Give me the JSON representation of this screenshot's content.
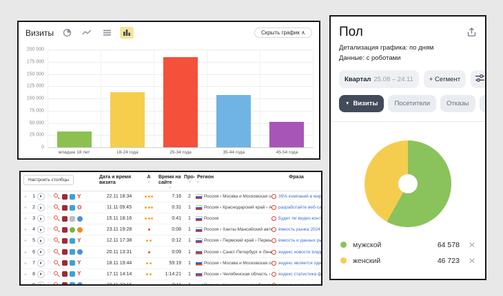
{
  "chart_data": [
    {
      "type": "bar",
      "title": "Визиты",
      "categories": [
        "младше 18 лет",
        "18-24 года",
        "25-34 года",
        "35-44 года",
        "45-54 года"
      ],
      "values": [
        32000,
        113000,
        185000,
        107000,
        52000
      ],
      "colors": [
        "#8cc152",
        "#f6ce4b",
        "#f4503a",
        "#6fb4e4",
        "#a855b8"
      ],
      "ylim": [
        0,
        200000
      ],
      "yticks": [
        "200 000",
        "175 000",
        "150 000",
        "125 000",
        "100 000",
        "75 000",
        "50 000",
        "25 000",
        "0"
      ],
      "grid": true,
      "xlabel": "",
      "ylabel": ""
    },
    {
      "type": "pie",
      "title": "Пол",
      "labels": [
        "мужской",
        "женский"
      ],
      "values": [
        64578,
        46723
      ],
      "display_values": [
        "64 578",
        "46 723"
      ],
      "colors": [
        "#8ac25b",
        "#f5cd4e"
      ],
      "donut": true,
      "legend_position": "bottom"
    }
  ],
  "visits_panel": {
    "title": "Визиты",
    "toolbar": [
      {
        "icon": "pie-chart-icon",
        "active": false
      },
      {
        "icon": "line-chart-icon",
        "active": false
      },
      {
        "icon": "stacked-chart-icon",
        "active": false
      },
      {
        "icon": "bar-chart-icon",
        "active": true
      }
    ],
    "hide_chart_button": "Скрыть график",
    "hide_chart_chevron": "∧"
  },
  "table_panel": {
    "configure_columns_button": "Настроить столбцы",
    "columns": [
      {
        "label": "Дата и время визита",
        "sortable": false
      },
      {
        "label": "А",
        "sortable": true
      },
      {
        "label": "Время на сайте",
        "sortable": true
      },
      {
        "label": "Про-",
        "sortable": true
      },
      {
        "label": "Регион",
        "sortable": true
      },
      {
        "label": "Фраза",
        "sortable": false
      }
    ],
    "rows": [
      {
        "num": "1",
        "date": "22.11 18:34",
        "activity_dots": 3,
        "activity_color": "#f5a623",
        "time_on_site": "7:16",
        "pages": "2",
        "region": "Россия › Москва и Московская область …",
        "phrase": "35% компаний в мире уже используют искусствен",
        "source_color": "#9e2b35",
        "os": {
          "name": "windows-os-icon",
          "color": "#38a3dc",
          "shape": "square"
        },
        "browser": {
          "name": "yandex-browser-icon",
          "color": "#e03c2f",
          "glyph": "Y",
          "shape": "letter"
        }
      },
      {
        "num": "2",
        "date": "11.11 09:45",
        "activity_dots": 3,
        "activity_color": "#f5a623",
        "time_on_site": "0:31",
        "pages": "1",
        "region": "Россия › Краснодарский край › Армавир",
        "phrase": "разработайте веб-сайт для публикации статей и",
        "source_color": "#9e2b35",
        "os": {
          "name": "windows-os-icon",
          "color": "#38a3dc",
          "shape": "square"
        },
        "browser": {
          "name": "opera-browser-icon",
          "color": "#e03c2f",
          "glyph": "O",
          "shape": "letter"
        }
      },
      {
        "num": "3",
        "date": "15.11 18:16",
        "activity_dots": 3,
        "activity_color": "#f5a623",
        "time_on_site": "0:41",
        "pages": "1",
        "region": "Россия",
        "phrase": "Будет ли видео-контент востребован в 2023-?",
        "source_color": "#9e2b35",
        "os": {
          "name": "generic-os-icon",
          "color": "#b9bfc6",
          "shape": "square"
        },
        "browser": {
          "name": "chrome-browser-icon",
          "color": "#4a90d9",
          "glyph": "",
          "shape": "circle"
        }
      },
      {
        "num": "4",
        "date": "23.11 19:28",
        "activity_dots": 1,
        "activity_color": "#e6442e",
        "time_on_site": "0:08",
        "pages": "1",
        "region": "Россия › Ханты-Мансийский автоном…",
        "phrase": "ёмкость рынка 2024",
        "source_color": "#9e2b35",
        "os": {
          "name": "android-os-icon",
          "color": "#7cb342",
          "shape": "circle"
        },
        "browser": {
          "name": "other-browser-icon",
          "color": "#f08a24",
          "glyph": "",
          "shape": "circle"
        }
      },
      {
        "num": "5",
        "date": "12.11 17:38",
        "activity_dots": 2,
        "activity_color": "#f5a623",
        "time_on_site": "0:12",
        "pages": "1",
        "region": "Россия › Пермский край › Пермь",
        "phrase": "ёмкость и данных рынков в россии список",
        "source_color": "#9e2b35",
        "os": {
          "name": "windows-os-icon",
          "color": "#38a3dc",
          "shape": "square"
        },
        "browser": {
          "name": "yandex-browser-icon",
          "color": "#e03c2f",
          "glyph": "Y",
          "shape": "letter"
        }
      },
      {
        "num": "6",
        "date": "20.11 13:31",
        "activity_dots": 1,
        "activity_color": "#e6442e",
        "time_on_site": "0:09",
        "pages": "1",
        "region": "Россия › Санкт-Петербург и Ленинград…",
        "phrase": "яндекс новости b/app cnfnbcnbrf li.ru",
        "source_color": "#9e2b35",
        "os": {
          "name": "windows-os-icon",
          "color": "#38a3dc",
          "shape": "square"
        },
        "browser": {
          "name": "chrome-browser-icon",
          "color": "#4a90d9",
          "glyph": "",
          "shape": "circle"
        }
      },
      {
        "num": "7",
        "date": "18.11 19:44",
        "activity_dots": 2,
        "activity_color": "#f5a623",
        "time_on_site": "59:19",
        "pages": "1",
        "region": "Россия › Москва и Московская область …",
        "phrase": "яндекс является одной из самых популярных поис",
        "source_color": "#9e2b35",
        "os": {
          "name": "windows-os-icon",
          "color": "#38a3dc",
          "shape": "square"
        },
        "browser": {
          "name": "yandex-browser-icon",
          "color": "#e03c2f",
          "glyph": "Y",
          "shape": "letter"
        }
      },
      {
        "num": "8",
        "date": "17.11 14:14",
        "activity_dots": 2,
        "activity_color": "#f5a623",
        "time_on_site": "1:14:21",
        "pages": "1",
        "region": "Россия › Челябинская область › Челяб…",
        "phrase": "яндекс статистика фото услуг на 2024",
        "source_color": "#9e2b35",
        "os": {
          "name": "windows-os-icon",
          "color": "#38a3dc",
          "shape": "square"
        },
        "browser": {
          "name": "yandex-browser-icon",
          "color": "#e03c2f",
          "glyph": "Y",
          "shape": "letter"
        }
      },
      {
        "num": "9",
        "date": "22.11 22:16",
        "activity_dots": 2,
        "activity_color": "#f5a623",
        "time_on_site": "0:11",
        "pages": "1",
        "region": "Россия › Нижегородская область",
        "phrase": "яндекс сколько сотрудников работает",
        "source_color": "#9e2b35",
        "os": {
          "name": "windows-os-icon",
          "color": "#38a3dc",
          "shape": "square"
        },
        "browser": {
          "name": "chrome-browser-icon",
          "color": "#4a90d9",
          "glyph": "",
          "shape": "circle"
        }
      }
    ]
  },
  "gender_panel": {
    "title": "Пол",
    "detail_line": "Детализация графика: по дням",
    "data_line": "Данные: с роботами",
    "period_button": {
      "label": "Квартал",
      "range": "25.08 – 24.11"
    },
    "segment_button": "+ Сегмент",
    "tabs": [
      {
        "label": "Визиты",
        "active": true
      },
      {
        "label": "Посетители",
        "active": false
      },
      {
        "label": "Отказы",
        "active": false
      },
      {
        "label": "Глу",
        "active": false
      }
    ],
    "legend": [
      {
        "label": "мужской",
        "value": "64 578",
        "color": "#8ac25b"
      },
      {
        "label": "женский",
        "value": "46 723",
        "color": "#f5cd4e"
      }
    ]
  }
}
